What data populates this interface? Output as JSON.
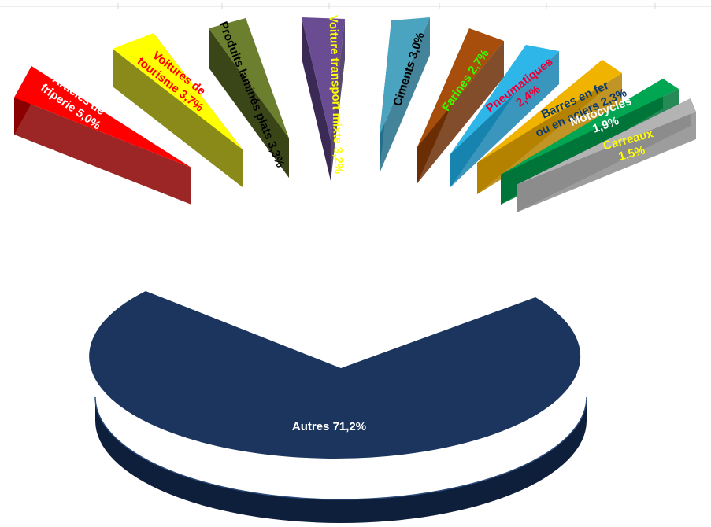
{
  "chart_data": {
    "type": "pie",
    "title": "",
    "slices": [
      {
        "label": "Articles de friperie",
        "value_text": "5,0%",
        "value": 5.0,
        "color": "#ff0000",
        "side_color": "#8b0000",
        "text_color": "#ffffff"
      },
      {
        "label": "Voitures de tourisme",
        "value_text": "3,7%",
        "value": 3.7,
        "color": "#ffff00",
        "side_color": "#8a8a1a",
        "text_color": "#ff0000"
      },
      {
        "label": "Produits laminés plats",
        "value_text": "3,3%",
        "value": 3.3,
        "color": "#6b7f2e",
        "side_color": "#3a4518",
        "text_color": "#000000"
      },
      {
        "label": "Voiture transport mixte",
        "value_text": "3,2%",
        "value": 3.2,
        "color": "#6a4c93",
        "side_color": "#3b2a55",
        "text_color": "#ffff00"
      },
      {
        "label": "Ciments",
        "value_text": "3,0%",
        "value": 3.0,
        "color": "#4aa3bf",
        "side_color": "#236f8a",
        "text_color": "#000000"
      },
      {
        "label": "Farines",
        "value_text": "2,7%",
        "value": 2.7,
        "color": "#a84e0c",
        "side_color": "#6b2e05",
        "text_color": "#33ff00"
      },
      {
        "label": "Pneumatiques",
        "value_text": "2,4%",
        "value": 2.4,
        "color": "#2fb6e8",
        "side_color": "#1784b0",
        "text_color": "#e8003a"
      },
      {
        "label": "Barres en fer ou en aciers",
        "value_text": "2,3%",
        "value": 2.3,
        "color": "#f0b400",
        "side_color": "#b58300",
        "text_color": "#0b3a6f"
      },
      {
        "label": "Motocycles",
        "value_text": "1,9%",
        "value": 1.9,
        "color": "#00a651",
        "side_color": "#00753a",
        "text_color": "#ffffff"
      },
      {
        "label": "Carreaux",
        "value_text": "1,5%",
        "value": 1.5,
        "color": "#b3b3b3",
        "side_color": "#8c8c8c",
        "text_color": "#ffff00"
      },
      {
        "label": "Autres",
        "value_text": "71,2%",
        "value": 71.2,
        "color": "#1c355e",
        "side_color": "#0e1f3b",
        "text_color": "#ffffff"
      }
    ]
  }
}
